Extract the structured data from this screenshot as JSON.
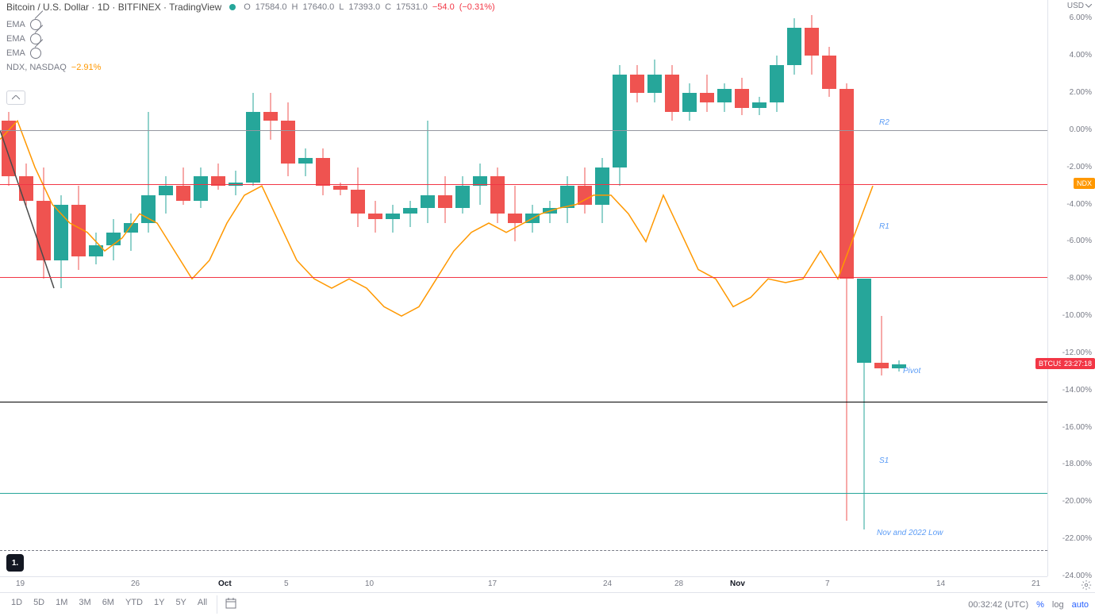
{
  "header": {
    "title": "Bitcoin / U.S. Dollar · 1D · BITFINEX · TradingView",
    "ohlc": {
      "o_label": "O",
      "o": "17584.0",
      "h_label": "H",
      "h": "17640.0",
      "l_label": "L",
      "l": "17393.0",
      "c_label": "C",
      "c": "17531.0",
      "chg": "−54.0",
      "chg_pct": "(−0.31%)"
    }
  },
  "indicators": {
    "ema1": "EMA",
    "ema2": "EMA",
    "ema3": "EMA",
    "ndx_label": "NDX, NASDAQ",
    "ndx_val": "−2.91%"
  },
  "y_axis": {
    "currency": "USD",
    "ticks": [
      {
        "v": "6.00%",
        "pct": 6
      },
      {
        "v": "4.00%",
        "pct": 4
      },
      {
        "v": "2.00%",
        "pct": 2
      },
      {
        "v": "0.00%",
        "pct": 0
      },
      {
        "v": "-2.00%",
        "pct": -2
      },
      {
        "v": "-4.00%",
        "pct": -4
      },
      {
        "v": "-6.00%",
        "pct": -6
      },
      {
        "v": "-8.00%",
        "pct": -8
      },
      {
        "v": "-10.00%",
        "pct": -10
      },
      {
        "v": "-12.00%",
        "pct": -12
      },
      {
        "v": "-14.00%",
        "pct": -14
      },
      {
        "v": "-16.00%",
        "pct": -16
      },
      {
        "v": "-18.00%",
        "pct": -18
      },
      {
        "v": "-20.00%",
        "pct": -20
      },
      {
        "v": "-22.00%",
        "pct": -22
      },
      {
        "v": "-24.00%",
        "pct": -24
      }
    ],
    "ndx_tag": {
      "text": "NDX",
      "pct": -2.9,
      "bg": "#ff9800"
    },
    "btc_tag": {
      "text": "BTCUSD",
      "pct": -12.6,
      "bg": "#f23645"
    },
    "time_tag": {
      "text": "23:27:18",
      "pct": -12.6,
      "bg": "#f23645"
    }
  },
  "x_axis": {
    "labels": [
      {
        "t": "19",
        "x": 20
      },
      {
        "t": "26",
        "x": 165
      },
      {
        "t": "Oct",
        "x": 275,
        "bold": true
      },
      {
        "t": "5",
        "x": 358
      },
      {
        "t": "10",
        "x": 460
      },
      {
        "t": "17",
        "x": 615
      },
      {
        "t": "24",
        "x": 760
      },
      {
        "t": "28",
        "x": 850
      },
      {
        "t": "Nov",
        "x": 920,
        "bold": true
      },
      {
        "t": "7",
        "x": 1040
      },
      {
        "t": "14",
        "x": 1180
      },
      {
        "t": "21",
        "x": 1300
      }
    ]
  },
  "hlines": [
    {
      "pct": 0,
      "color": "#9598a1",
      "w": 1
    },
    {
      "pct": -2.9,
      "color": "#f23645",
      "w": 1
    },
    {
      "pct": -7.9,
      "color": "#f23645",
      "w": 1
    },
    {
      "pct": -14.6,
      "color": "#000000",
      "w": 1.5
    },
    {
      "pct": -19.5,
      "color": "#26a69a",
      "w": 1.5
    },
    {
      "pct": -22.6,
      "color": "#787b86",
      "w": 1,
      "dash": true
    }
  ],
  "annotations": [
    {
      "text": "R2",
      "x": 1108,
      "pct": 0.4
    },
    {
      "text": "R1",
      "x": 1108,
      "pct": -5.2
    },
    {
      "text": "Pivot",
      "x": 1138,
      "pct": -13.0
    },
    {
      "text": "S1",
      "x": 1108,
      "pct": -17.8
    },
    {
      "text": "Nov and 2022 Low",
      "x": 1105,
      "pct": -21.7
    }
  ],
  "chart": {
    "ylim": [
      -24,
      7
    ],
    "xlim": [
      0,
      1320
    ],
    "toppx": 0,
    "bottompx": 726,
    "candle_width": 18,
    "up_color": "#26a69a",
    "down_color": "#ef5350",
    "candles": [
      {
        "x": 2,
        "o": 0.5,
        "h": 1.0,
        "l": -3.0,
        "c": -2.5,
        "up": false
      },
      {
        "x": 24,
        "o": -2.5,
        "h": -1.8,
        "l": -4.2,
        "c": -3.8,
        "up": false
      },
      {
        "x": 46,
        "o": -3.8,
        "h": -2.0,
        "l": -8.0,
        "c": -7.0,
        "up": false
      },
      {
        "x": 68,
        "o": -7.0,
        "h": -3.5,
        "l": -8.5,
        "c": -4.0,
        "up": true
      },
      {
        "x": 90,
        "o": -4.0,
        "h": -3.0,
        "l": -7.5,
        "c": -6.8,
        "up": false
      },
      {
        "x": 112,
        "o": -6.8,
        "h": -5.5,
        "l": -7.2,
        "c": -6.2,
        "up": true
      },
      {
        "x": 134,
        "o": -6.2,
        "h": -4.8,
        "l": -7.0,
        "c": -5.5,
        "up": true
      },
      {
        "x": 156,
        "o": -5.5,
        "h": -4.5,
        "l": -6.5,
        "c": -5.0,
        "up": true
      },
      {
        "x": 178,
        "o": -5.0,
        "h": 1.0,
        "l": -5.5,
        "c": -3.5,
        "up": true
      },
      {
        "x": 200,
        "o": -3.5,
        "h": -2.5,
        "l": -4.5,
        "c": -3.0,
        "up": true
      },
      {
        "x": 222,
        "o": -3.0,
        "h": -2.0,
        "l": -4.0,
        "c": -3.8,
        "up": false
      },
      {
        "x": 244,
        "o": -3.8,
        "h": -2.0,
        "l": -4.2,
        "c": -2.5,
        "up": true
      },
      {
        "x": 266,
        "o": -2.5,
        "h": -1.8,
        "l": -3.2,
        "c": -3.0,
        "up": false
      },
      {
        "x": 288,
        "o": -3.0,
        "h": -2.2,
        "l": -3.5,
        "c": -2.8,
        "up": true
      },
      {
        "x": 310,
        "o": -2.8,
        "h": 2.0,
        "l": -3.0,
        "c": 1.0,
        "up": true
      },
      {
        "x": 332,
        "o": 1.0,
        "h": 2.0,
        "l": -0.5,
        "c": 0.5,
        "up": false
      },
      {
        "x": 354,
        "o": 0.5,
        "h": 1.5,
        "l": -2.5,
        "c": -1.8,
        "up": false
      },
      {
        "x": 376,
        "o": -1.8,
        "h": -1.0,
        "l": -2.5,
        "c": -1.5,
        "up": true
      },
      {
        "x": 398,
        "o": -1.5,
        "h": -1.0,
        "l": -3.5,
        "c": -3.0,
        "up": false
      },
      {
        "x": 420,
        "o": -3.0,
        "h": -2.8,
        "l": -3.5,
        "c": -3.2,
        "up": false
      },
      {
        "x": 442,
        "o": -3.2,
        "h": -2.0,
        "l": -5.2,
        "c": -4.5,
        "up": false
      },
      {
        "x": 464,
        "o": -4.5,
        "h": -3.8,
        "l": -5.5,
        "c": -4.8,
        "up": false
      },
      {
        "x": 486,
        "o": -4.8,
        "h": -4.0,
        "l": -5.5,
        "c": -4.5,
        "up": true
      },
      {
        "x": 508,
        "o": -4.5,
        "h": -3.8,
        "l": -5.2,
        "c": -4.2,
        "up": true
      },
      {
        "x": 530,
        "o": -4.2,
        "h": 0.5,
        "l": -5.0,
        "c": -3.5,
        "up": true
      },
      {
        "x": 552,
        "o": -3.5,
        "h": -2.5,
        "l": -5.0,
        "c": -4.2,
        "up": false
      },
      {
        "x": 574,
        "o": -4.2,
        "h": -2.5,
        "l": -4.5,
        "c": -3.0,
        "up": true
      },
      {
        "x": 596,
        "o": -3.0,
        "h": -1.8,
        "l": -4.0,
        "c": -2.5,
        "up": true
      },
      {
        "x": 618,
        "o": -2.5,
        "h": -2.0,
        "l": -5.0,
        "c": -4.5,
        "up": false
      },
      {
        "x": 640,
        "o": -4.5,
        "h": -3.0,
        "l": -6.0,
        "c": -5.0,
        "up": false
      },
      {
        "x": 662,
        "o": -5.0,
        "h": -4.0,
        "l": -5.5,
        "c": -4.5,
        "up": true
      },
      {
        "x": 684,
        "o": -4.5,
        "h": -3.8,
        "l": -5.0,
        "c": -4.2,
        "up": true
      },
      {
        "x": 706,
        "o": -4.2,
        "h": -2.5,
        "l": -5.0,
        "c": -3.0,
        "up": true
      },
      {
        "x": 728,
        "o": -3.0,
        "h": -2.0,
        "l": -4.5,
        "c": -4.0,
        "up": false
      },
      {
        "x": 750,
        "o": -4.0,
        "h": -1.5,
        "l": -5.0,
        "c": -2.0,
        "up": true
      },
      {
        "x": 772,
        "o": -2.0,
        "h": 3.5,
        "l": -3.0,
        "c": 3.0,
        "up": true
      },
      {
        "x": 794,
        "o": 3.0,
        "h": 3.5,
        "l": 1.5,
        "c": 2.0,
        "up": false
      },
      {
        "x": 816,
        "o": 2.0,
        "h": 3.8,
        "l": 1.5,
        "c": 3.0,
        "up": true
      },
      {
        "x": 838,
        "o": 3.0,
        "h": 3.5,
        "l": 0.5,
        "c": 1.0,
        "up": false
      },
      {
        "x": 860,
        "o": 1.0,
        "h": 2.5,
        "l": 0.5,
        "c": 2.0,
        "up": true
      },
      {
        "x": 882,
        "o": 2.0,
        "h": 3.0,
        "l": 1.0,
        "c": 1.5,
        "up": false
      },
      {
        "x": 904,
        "o": 1.5,
        "h": 2.5,
        "l": 1.0,
        "c": 2.2,
        "up": true
      },
      {
        "x": 926,
        "o": 2.2,
        "h": 2.8,
        "l": 0.8,
        "c": 1.2,
        "up": false
      },
      {
        "x": 948,
        "o": 1.2,
        "h": 1.8,
        "l": 0.8,
        "c": 1.5,
        "up": true
      },
      {
        "x": 970,
        "o": 1.5,
        "h": 4.0,
        "l": 1.0,
        "c": 3.5,
        "up": true
      },
      {
        "x": 992,
        "o": 3.5,
        "h": 6.0,
        "l": 3.0,
        "c": 5.5,
        "up": true
      },
      {
        "x": 1014,
        "o": 5.5,
        "h": 6.2,
        "l": 3.0,
        "c": 4.0,
        "up": false
      },
      {
        "x": 1036,
        "o": 4.0,
        "h": 4.5,
        "l": 1.8,
        "c": 2.2,
        "up": false
      },
      {
        "x": 1058,
        "o": 2.2,
        "h": 2.5,
        "l": -21.0,
        "c": -8.0,
        "up": false
      },
      {
        "x": 1080,
        "o": -8.0,
        "h": -8.0,
        "l": -21.5,
        "c": -12.5,
        "up": true
      },
      {
        "x": 1102,
        "o": -12.5,
        "h": -10.0,
        "l": -13.2,
        "c": -12.8,
        "up": false
      },
      {
        "x": 1124,
        "o": -12.8,
        "h": -12.4,
        "l": -13.0,
        "c": -12.6,
        "up": true
      }
    ],
    "ndx_line": {
      "color": "#ff9800",
      "width": 1.5,
      "points": [
        {
          "x": 0,
          "y": -0.5
        },
        {
          "x": 22,
          "y": 0.5
        },
        {
          "x": 44,
          "y": -2.0
        },
        {
          "x": 66,
          "y": -4.0
        },
        {
          "x": 88,
          "y": -5.0
        },
        {
          "x": 110,
          "y": -5.5
        },
        {
          "x": 132,
          "y": -6.5
        },
        {
          "x": 154,
          "y": -5.8
        },
        {
          "x": 176,
          "y": -4.5
        },
        {
          "x": 198,
          "y": -5.0
        },
        {
          "x": 220,
          "y": -6.5
        },
        {
          "x": 242,
          "y": -8.0
        },
        {
          "x": 264,
          "y": -7.0
        },
        {
          "x": 286,
          "y": -5.0
        },
        {
          "x": 308,
          "y": -3.5
        },
        {
          "x": 330,
          "y": -3.0
        },
        {
          "x": 352,
          "y": -5.0
        },
        {
          "x": 374,
          "y": -7.0
        },
        {
          "x": 396,
          "y": -8.0
        },
        {
          "x": 418,
          "y": -8.5
        },
        {
          "x": 440,
          "y": -8.0
        },
        {
          "x": 462,
          "y": -8.5
        },
        {
          "x": 484,
          "y": -9.5
        },
        {
          "x": 506,
          "y": -10.0
        },
        {
          "x": 528,
          "y": -9.5
        },
        {
          "x": 550,
          "y": -8.0
        },
        {
          "x": 572,
          "y": -6.5
        },
        {
          "x": 594,
          "y": -5.5
        },
        {
          "x": 616,
          "y": -5.0
        },
        {
          "x": 638,
          "y": -5.5
        },
        {
          "x": 660,
          "y": -5.0
        },
        {
          "x": 682,
          "y": -4.5
        },
        {
          "x": 704,
          "y": -4.2
        },
        {
          "x": 726,
          "y": -4.0
        },
        {
          "x": 748,
          "y": -3.5
        },
        {
          "x": 770,
          "y": -3.5
        },
        {
          "x": 792,
          "y": -4.5
        },
        {
          "x": 814,
          "y": -6.0
        },
        {
          "x": 836,
          "y": -3.5
        },
        {
          "x": 858,
          "y": -5.5
        },
        {
          "x": 880,
          "y": -7.5
        },
        {
          "x": 902,
          "y": -8.0
        },
        {
          "x": 924,
          "y": -9.5
        },
        {
          "x": 946,
          "y": -9.0
        },
        {
          "x": 968,
          "y": -8.0
        },
        {
          "x": 990,
          "y": -8.2
        },
        {
          "x": 1012,
          "y": -8.0
        },
        {
          "x": 1034,
          "y": -6.5
        },
        {
          "x": 1056,
          "y": -8.0
        },
        {
          "x": 1078,
          "y": -5.5
        },
        {
          "x": 1100,
          "y": -3.0
        }
      ]
    },
    "diag_line": {
      "color": "#4a4a4a",
      "x1": 0,
      "y1": 0,
      "x2": 68,
      "y2": -8.5
    }
  },
  "timeframes": [
    "1D",
    "5D",
    "1M",
    "3M",
    "6M",
    "YTD",
    "1Y",
    "5Y",
    "All"
  ],
  "bottom": {
    "clock": "00:32:42 (UTC)",
    "pct": "%",
    "log": "log",
    "auto": "auto"
  },
  "tv_logo": "1."
}
